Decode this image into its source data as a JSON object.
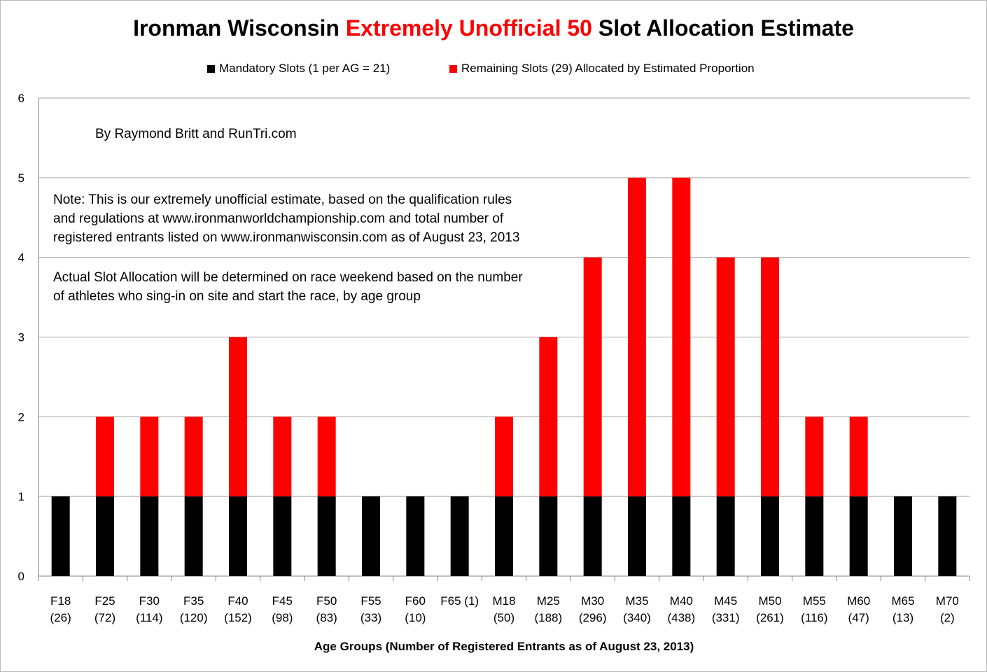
{
  "title_parts": {
    "part1": "Ironman Wisconsin ",
    "part2": "Extremely Unofficial 50",
    "part3": " Slot Allocation Estimate"
  },
  "colors": {
    "mandatory": "#000000",
    "remaining": "#ff0000",
    "grid": "#a6a6a6",
    "accent": "#ff0000"
  },
  "annotations": {
    "byline": "By Raymond Britt and RunTri.com",
    "note_line1": "Note: This is our extremely unofficial estimate, based on the qualification rules",
    "note_line2": "and regulations at www.ironmanworldchampionship.com and total number of",
    "note_line3": "registered entrants listed on www.ironmanwisconsin.com as of August 23, 2013",
    "actual_line1": "Actual Slot Allocation will be determined on race weekend based on the number",
    "actual_line2": "of athletes who sing-in on site and start the race, by age group"
  },
  "chart_data": {
    "type": "bar",
    "stacked": true,
    "title": "Ironman Wisconsin Extremely Unofficial 50 Slot Allocation Estimate",
    "xlabel": "Age Groups (Number of Registered Entrants as of August 23, 2013)",
    "ylabel": "",
    "ylim": [
      0,
      6
    ],
    "yticks": [
      0,
      1,
      2,
      3,
      4,
      5,
      6
    ],
    "grid": true,
    "legend_position": "top",
    "categories": [
      {
        "group": "F18",
        "entrants": "(26)"
      },
      {
        "group": "F25",
        "entrants": "(72)"
      },
      {
        "group": "F30",
        "entrants": "(114)"
      },
      {
        "group": "F35",
        "entrants": "(120)"
      },
      {
        "group": "F40",
        "entrants": "(152)"
      },
      {
        "group": "F45",
        "entrants": "(98)"
      },
      {
        "group": "F50",
        "entrants": "(83)"
      },
      {
        "group": "F55",
        "entrants": "(33)"
      },
      {
        "group": "F60",
        "entrants": "(10)"
      },
      {
        "group": "F65 (1)",
        "entrants": ""
      },
      {
        "group": "M18",
        "entrants": "(50)"
      },
      {
        "group": "M25",
        "entrants": "(188)"
      },
      {
        "group": "M30",
        "entrants": "(296)"
      },
      {
        "group": "M35",
        "entrants": "(340)"
      },
      {
        "group": "M40",
        "entrants": "(438)"
      },
      {
        "group": "M45",
        "entrants": "(331)"
      },
      {
        "group": "M50",
        "entrants": "(261)"
      },
      {
        "group": "M55",
        "entrants": "(116)"
      },
      {
        "group": "M60",
        "entrants": "(47)"
      },
      {
        "group": "M65",
        "entrants": "(13)"
      },
      {
        "group": "M70",
        "entrants": "(2)"
      }
    ],
    "series": [
      {
        "name": "Mandatory Slots (1 per AG = 21)",
        "values": [
          1,
          1,
          1,
          1,
          1,
          1,
          1,
          1,
          1,
          1,
          1,
          1,
          1,
          1,
          1,
          1,
          1,
          1,
          1,
          1,
          1
        ]
      },
      {
        "name": "Remaining Slots (29) Allocated by Estimated Proportion",
        "values": [
          0,
          1,
          1,
          1,
          2,
          1,
          1,
          0,
          0,
          0,
          1,
          2,
          3,
          4,
          4,
          3,
          3,
          1,
          1,
          0,
          0
        ]
      }
    ]
  }
}
